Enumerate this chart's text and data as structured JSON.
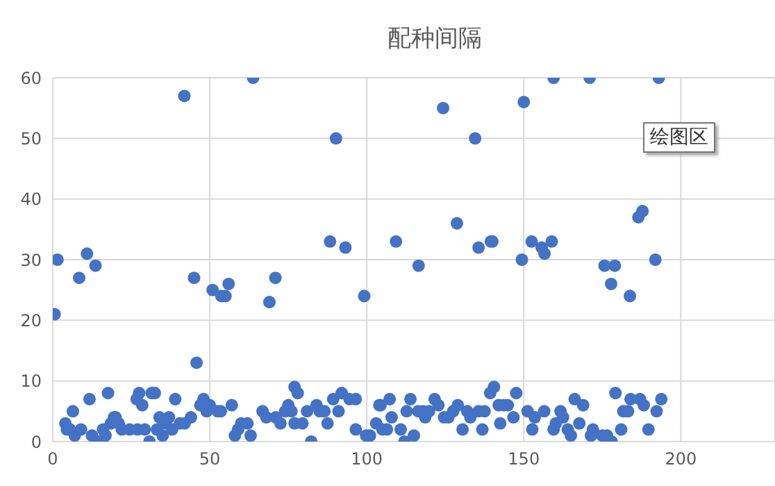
{
  "chart_data": {
    "type": "scatter",
    "title": "配种间隔",
    "annotations": [
      "绘图区"
    ],
    "xlim": [
      0,
      230
    ],
    "xticks": [
      0,
      50,
      100,
      150,
      200
    ],
    "ylim": [
      0,
      60
    ],
    "yticks": [
      0,
      10,
      20,
      30,
      40,
      50,
      60
    ],
    "grid": true,
    "legend": false,
    "marker": "circle",
    "series": [
      {
        "color": "#4472c4",
        "x": [
          0.6,
          1.5,
          8.4,
          10.9,
          13.6,
          41.9,
          45,
          45.8,
          50.9,
          53.7,
          55,
          56,
          63.8,
          69,
          70.9,
          88.3,
          90.2,
          93.2,
          99.2,
          109.3,
          116.5,
          124.3,
          128.7,
          134.5,
          135.6,
          139.5,
          140,
          149.4,
          150,
          152.5,
          155.7,
          156.6,
          158.9,
          159.5,
          171,
          175.7,
          177.8,
          179,
          183.8,
          186.5,
          187.8,
          191.9,
          193,
          4,
          4.5,
          6.4,
          5.5,
          7,
          9,
          11.7,
          12.5,
          14.3,
          16,
          16.8,
          17.6,
          18.5,
          19.5,
          20,
          21,
          22,
          24.5,
          27,
          26.7,
          27.5,
          28.5,
          29.3,
          30.8,
          31.5,
          32.5,
          33.2,
          34,
          35,
          36,
          37,
          38,
          39,
          40.5,
          42,
          44,
          47,
          48,
          49,
          50,
          52.5,
          53.5,
          57,
          58,
          59,
          60,
          62,
          63,
          66.8,
          68,
          71,
          72.5,
          74,
          75,
          76,
          77,
          77,
          78,
          79.5,
          81,
          82.3,
          84,
          85,
          86.5,
          87.5,
          89.3,
          91,
          92,
          94.5,
          96.5,
          96.5,
          99.8,
          101,
          103,
          104,
          105,
          106.4,
          104.4,
          107.3,
          107.9,
          110.8,
          112,
          112.7,
          113.9,
          115,
          116.4,
          117.9,
          118.6,
          119.8,
          121.6,
          122.8,
          124.6,
          126,
          127.5,
          129,
          130.5,
          132,
          133,
          135.6,
          136.8,
          137.5,
          139.3,
          140.5,
          142,
          142.5,
          143.7,
          144.9,
          146.7,
          147.6,
          151.2,
          152.7,
          153.5,
          156.5,
          159.5,
          160.2,
          161.7,
          162.5,
          164,
          165,
          166.2,
          167.7,
          168.9,
          171.4,
          172,
          175,
          176.5,
          178,
          179.2,
          181,
          181.7,
          183.2,
          184,
          187,
          188.2,
          189.7,
          192.3,
          193.8
        ],
        "values": [
          21,
          30,
          27,
          31,
          29,
          57,
          27,
          13,
          25,
          24,
          24,
          26,
          60,
          23,
          27,
          33,
          50,
          32,
          24,
          33,
          29,
          55,
          36,
          50,
          32,
          33,
          33,
          30,
          56,
          33,
          32,
          31,
          33,
          60,
          60,
          29,
          26,
          29,
          24,
          37,
          38,
          30,
          60,
          3,
          2,
          5,
          2,
          1,
          2,
          7,
          1,
          0,
          2,
          1,
          8,
          3,
          4,
          4,
          3,
          2,
          2,
          2,
          7,
          8,
          6,
          2,
          0,
          8,
          8,
          2,
          4,
          1,
          3,
          4,
          2,
          7,
          3,
          3,
          4,
          6,
          7,
          5,
          6,
          5,
          5,
          6,
          1,
          2,
          3,
          3,
          1,
          5,
          4,
          4,
          3,
          5,
          6,
          5,
          3,
          9,
          8,
          3,
          5,
          0,
          6,
          5,
          5,
          3,
          7,
          5,
          8,
          7,
          7,
          2,
          1,
          1,
          3,
          6,
          2,
          2,
          6,
          7,
          4,
          2,
          0,
          5,
          7,
          1,
          5,
          5,
          4,
          5,
          7,
          6,
          4,
          4,
          5,
          6,
          2,
          5,
          4,
          5,
          2,
          5,
          8,
          9,
          6,
          3,
          6,
          6,
          4,
          8,
          5,
          2,
          4,
          5,
          2,
          3,
          5,
          4,
          2,
          1,
          7,
          3,
          6,
          1,
          2,
          1,
          1,
          0,
          8,
          2,
          5,
          5,
          7,
          7,
          6,
          2,
          5,
          7
        ]
      }
    ]
  }
}
